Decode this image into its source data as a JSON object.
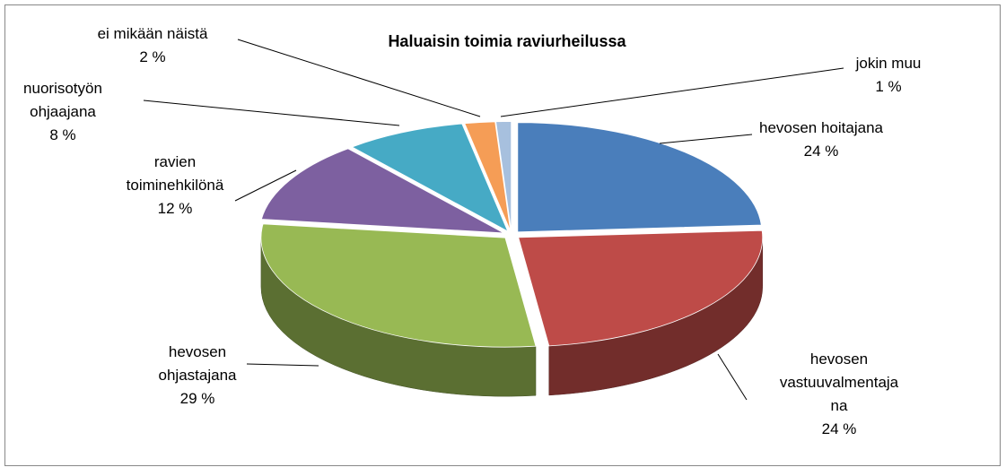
{
  "chart_data": {
    "type": "pie3d",
    "title": "Haluaisin toimia raviurheilussa",
    "categories": [
      "hevosen hoitajana",
      "hevosen vastuuvalmentajana",
      "hevosen ohjastajana",
      "ravien toiminehkilönä",
      "nuorisotyön ohjaajana",
      "ei mikään näistä",
      "jokin muu"
    ],
    "values": [
      24,
      24,
      29,
      12,
      8,
      2,
      1
    ],
    "value_labels": [
      "24 %",
      "24 %",
      "29 %",
      "12 %",
      "8 %",
      "2 %",
      "1 %"
    ],
    "colors": [
      "#4a7ebb",
      "#be4b48",
      "#98b954",
      "#7d60a0",
      "#46aac5",
      "#f59d56",
      "#a7c0de"
    ]
  }
}
